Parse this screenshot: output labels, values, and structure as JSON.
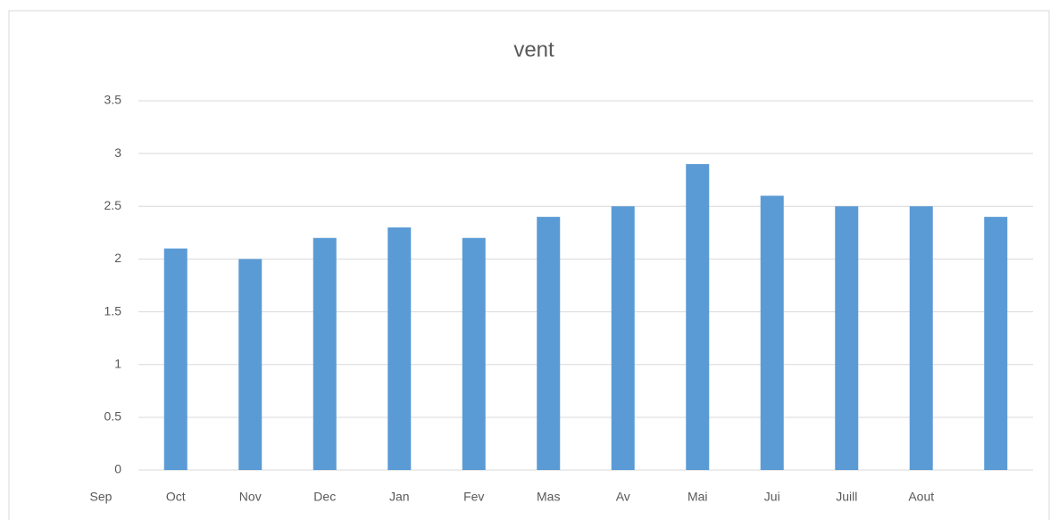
{
  "chart_data": {
    "type": "bar",
    "title": "vent",
    "categories": [
      "Sep",
      "Oct",
      "Nov",
      "Dec",
      "Jan",
      "Fev",
      "Mas",
      "Av",
      "Mai",
      "Jui",
      "Juill",
      "Aout"
    ],
    "values": [
      2.1,
      2.0,
      2.2,
      2.3,
      2.2,
      2.4,
      2.5,
      2.9,
      2.6,
      2.5,
      2.5,
      2.4
    ],
    "color": "#5b9bd5",
    "ylim": [
      0,
      3.5
    ],
    "yticks": [
      0,
      0.5,
      1,
      1.5,
      2,
      2.5,
      3,
      3.5
    ],
    "grid": true
  }
}
